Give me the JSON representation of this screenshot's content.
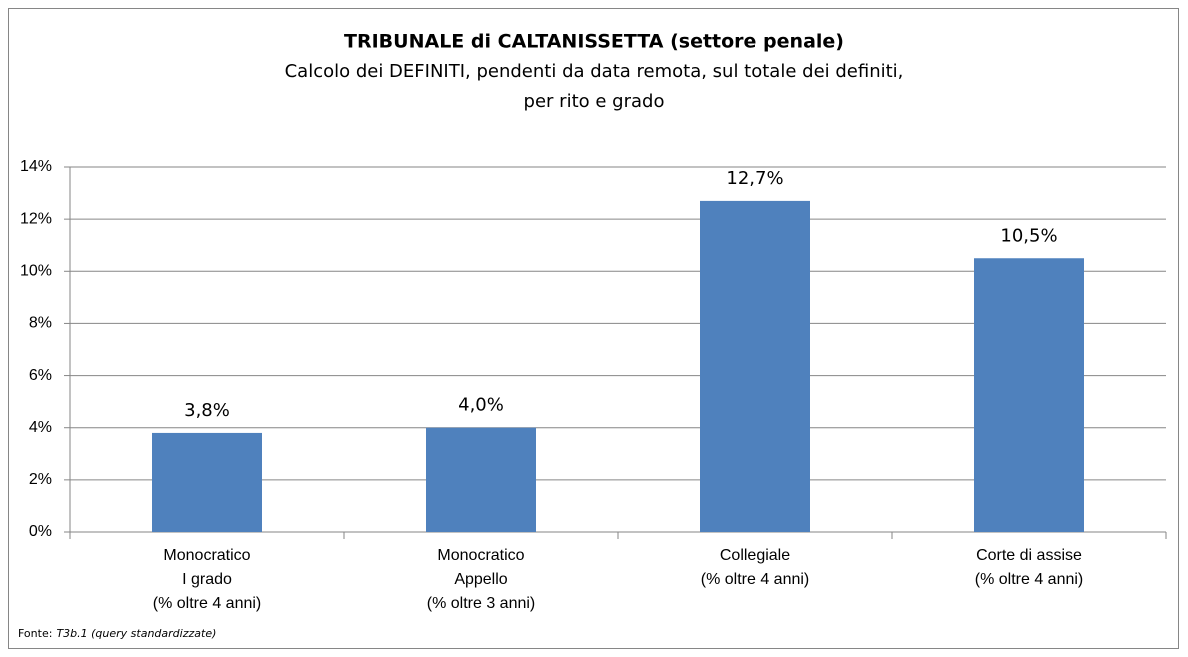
{
  "chart_data": {
    "type": "bar",
    "title": "TRIBUNALE di CALTANISSETTA (settore penale)",
    "subtitle": [
      "Calcolo dei DEFINITI, pendenti da data remota, sul totale dei definiti,",
      "per rito e grado"
    ],
    "categories": [
      [
        "Monocratico",
        "I grado",
        "(% oltre 4 anni)"
      ],
      [
        "Monocratico",
        "Appello",
        "(% oltre 3 anni)"
      ],
      [
        "Collegiale",
        "(% oltre 4 anni)"
      ],
      [
        "Corte di assise",
        "(% oltre 4 anni)"
      ]
    ],
    "values": [
      3.8,
      4.0,
      12.7,
      10.5
    ],
    "value_labels": [
      "3,8%",
      "4,0%",
      "12,7%",
      "10,5%"
    ],
    "color": "#4f81bd",
    "ylim": [
      0,
      14
    ],
    "yticks": [
      {
        "value": 0,
        "label": "0%"
      },
      {
        "value": 2,
        "label": "2%"
      },
      {
        "value": 4,
        "label": "4%"
      },
      {
        "value": 6,
        "label": "6%"
      },
      {
        "value": 8,
        "label": "8%"
      },
      {
        "value": 10,
        "label": "10%"
      },
      {
        "value": 12,
        "label": "12%"
      },
      {
        "value": 14,
        "label": "14%"
      }
    ],
    "grid": true,
    "source": {
      "label": "Fonte:",
      "text": "T3b.1 (query standardizzate)"
    }
  }
}
